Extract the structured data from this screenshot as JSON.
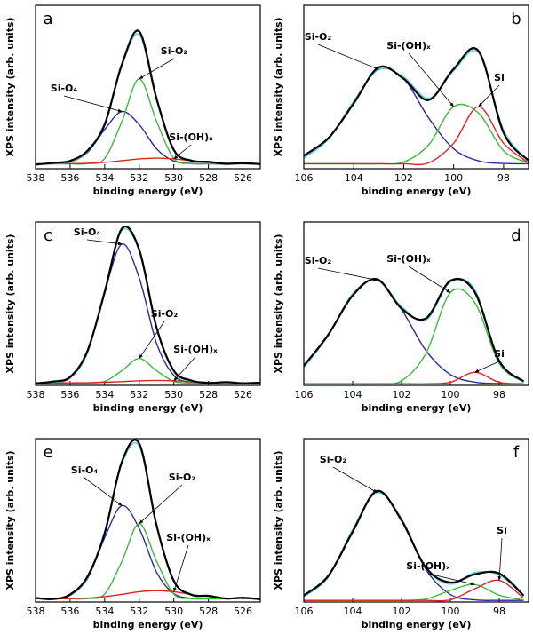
{
  "chart_data": [
    {
      "type": "line",
      "label": "a",
      "x_label": "binding energy (eV)",
      "y_label": "XPS intensity (arb. units)",
      "x": [
        538,
        537,
        536,
        535,
        534,
        533,
        532,
        531,
        530,
        529,
        528,
        527,
        526,
        525
      ],
      "xlim": [
        538,
        525
      ],
      "xticks": [
        538,
        536,
        534,
        532,
        530,
        528,
        526
      ],
      "ylim": [
        0,
        100
      ],
      "series": [
        {
          "color": "#000000",
          "values": [
            2.5,
            3.5,
            4.8,
            11,
            27,
            64,
            84,
            43,
            11.5,
            5,
            4.2,
            3,
            3.4,
            2.8
          ]
        },
        {
          "name": "Si-O₄",
          "color": "#2b2b9a",
          "values": [
            3,
            3.1,
            4.1,
            9.9,
            24,
            35,
            27,
            12.2,
            4.7,
            3.2,
            3,
            3,
            3,
            3
          ]
        },
        {
          "name": "Si-O₂",
          "color": "#3cb83c",
          "values": [
            3,
            3,
            3,
            3.1,
            6.3,
            29,
            55,
            29,
            6.3,
            3.1,
            3,
            3,
            3,
            3
          ]
        },
        {
          "name": "Si-(OH)ₓ",
          "color": "#dd2222",
          "values": [
            3,
            3,
            3.1,
            3.3,
            3.9,
            4.9,
            6,
            6.5,
            6,
            4.9,
            3.9,
            3.3,
            3.1,
            3
          ]
        },
        {
          "color": "#5bd0e0",
          "values": [
            3,
            3.1,
            4.2,
            10.3,
            28.2,
            62.9,
            82,
            41.7,
            11,
            5.2,
            3.9,
            3.3,
            3.1,
            3
          ]
        }
      ]
    },
    {
      "type": "line",
      "label": "b",
      "x_label": "binding energy (eV)",
      "y_label": "XPS intensity (arb. units)",
      "x": [
        106,
        105,
        104,
        103,
        102,
        101,
        100,
        99,
        98,
        97
      ],
      "xlim": [
        106,
        97
      ],
      "xticks": [
        106,
        104,
        102,
        100,
        98
      ],
      "ylim": [
        0,
        100
      ],
      "series": [
        {
          "color": "#000000",
          "values": [
            8,
            19,
            40,
            62,
            55,
            42,
            61,
            72,
            22,
            5
          ]
        },
        {
          "name": "Si-O₂",
          "color": "#2b2b9a",
          "values": [
            6.7,
            18.3,
            41.3,
            60.7,
            55,
            31,
            12.2,
            4.8,
            3.2,
            3
          ]
        },
        {
          "name": "Si-(OH)ₓ",
          "color": "#3cb83c",
          "values": [
            3,
            3,
            3,
            3,
            4.1,
            14.6,
            38,
            34,
            11,
            3.6
          ]
        },
        {
          "name": "Si",
          "color": "#dd2222",
          "values": [
            3,
            3,
            3,
            3,
            3,
            3.6,
            15.6,
            38,
            15.6,
            3.6
          ]
        },
        {
          "color": "#5bd0e0",
          "values": [
            6.7,
            18.3,
            41.3,
            60.7,
            56.1,
            43.2,
            59.8,
            70.8,
            23.8,
            4.2
          ]
        }
      ]
    },
    {
      "type": "line",
      "label": "c",
      "x_label": "binding energy (eV)",
      "y_label": "XPS intensity (arb. units)",
      "x": [
        538,
        537,
        536,
        535,
        534,
        533,
        532,
        531,
        530,
        529,
        528,
        527,
        526,
        525
      ],
      "xlim": [
        538,
        525
      ],
      "xticks": [
        538,
        536,
        534,
        532,
        530,
        528,
        526
      ],
      "ylim": [
        0,
        100
      ],
      "series": [
        {
          "color": "#000000",
          "values": [
            1.2,
            2.3,
            5.1,
            21,
            57,
            96,
            83,
            35.5,
            9,
            3,
            1.5,
            2,
            1.3,
            1.7
          ]
        },
        {
          "name": "Si-O₄",
          "color": "#2b2b9a",
          "values": [
            1.5,
            1.8,
            4.5,
            19.9,
            57.3,
            86.5,
            65.7,
            25.8,
            6.1,
            1.9,
            1.5,
            1.5,
            1.5,
            1.5
          ]
        },
        {
          "name": "Si-O₂",
          "color": "#3cb83c",
          "values": [
            1.5,
            1.5,
            1.5,
            1.5,
            2.4,
            9,
            16.5,
            9,
            2.4,
            1.5,
            1.5,
            1.5,
            1.5,
            1.5
          ]
        },
        {
          "name": "Si-(OH)ₓ",
          "color": "#dd2222",
          "values": [
            1.5,
            1.5,
            1.5,
            1.6,
            1.9,
            2.3,
            2.8,
            3,
            2.8,
            2.3,
            1.9,
            1.6,
            1.5,
            1.5
          ]
        },
        {
          "color": "#5bd0e0",
          "values": [
            1.5,
            1.8,
            4.5,
            20,
            58.6,
            94.8,
            82,
            34.8,
            8.3,
            2.7,
            1.9,
            1.6,
            1.5,
            1.5
          ]
        }
      ]
    },
    {
      "type": "line",
      "label": "d",
      "x_label": "binding energy (eV)",
      "y_label": "XPS intensity (arb. units)",
      "x": [
        106,
        105,
        104,
        103,
        102,
        101,
        100,
        99,
        98,
        97
      ],
      "xlim": [
        106,
        96.8
      ],
      "xticks": [
        106,
        104,
        102,
        100,
        98
      ],
      "ylim": [
        0,
        100
      ],
      "series": [
        {
          "color": "#000000",
          "values": [
            12,
            31,
            55,
            65,
            47,
            41,
            64,
            57,
            15,
            2.5
          ]
        },
        {
          "name": "Si-O₂",
          "color": "#2b2b9a",
          "values": [
            10.9,
            30.6,
            56,
            64.4,
            46.4,
            21.3,
            6.6,
            2,
            1.1,
            1
          ]
        },
        {
          "name": "Si-(OH)ₓ",
          "color": "#3cb83c",
          "values": [
            1,
            1,
            1,
            1,
            2.8,
            19.6,
            56.8,
            50.6,
            13.4,
            1.9
          ]
        },
        {
          "name": "Si",
          "color": "#dd2222",
          "values": [
            1,
            1,
            1,
            1,
            1,
            1,
            1.9,
            8,
            1.9,
            1
          ]
        },
        {
          "color": "#5bd0e0",
          "values": [
            10.9,
            30.6,
            56,
            64.4,
            48.2,
            39.9,
            63.2,
            58.6,
            14.4,
            1.9
          ]
        }
      ]
    },
    {
      "type": "line",
      "label": "e",
      "x_label": "binding energy (eV)",
      "y_label": "XPS intensity (arb. units)",
      "x": [
        538,
        537,
        536,
        535,
        534,
        533,
        532,
        531,
        530,
        529,
        528,
        527,
        526,
        525
      ],
      "xlim": [
        538,
        525
      ],
      "xticks": [
        538,
        536,
        534,
        532,
        530,
        528,
        526
      ],
      "ylim": [
        0,
        100
      ],
      "series": [
        {
          "color": "#000000",
          "values": [
            2.5,
            1.8,
            4.6,
            15.5,
            42,
            86,
            97,
            47,
            13,
            4.5,
            3.8,
            2.1,
            2.6,
            1.7
          ]
        },
        {
          "name": "Si-O₄",
          "color": "#2b2b9a",
          "values": [
            2,
            2.2,
            4,
            14.3,
            39.4,
            59,
            45,
            18.3,
            5.1,
            2.3,
            2,
            2,
            2,
            2
          ]
        },
        {
          "name": "Si-O₂",
          "color": "#3cb83c",
          "values": [
            2,
            2,
            2,
            2.1,
            4.9,
            25,
            48,
            25,
            4.9,
            2.1,
            2,
            2,
            2,
            2
          ]
        },
        {
          "name": "Si-(OH)ₓ",
          "color": "#dd2222",
          "values": [
            2,
            2,
            2.1,
            2.4,
            3.3,
            4.7,
            6.3,
            7,
            6.3,
            4.7,
            3.3,
            2.4,
            2.1,
            2
          ]
        },
        {
          "color": "#5bd0e0",
          "values": [
            2,
            2.2,
            4.1,
            14.8,
            43.6,
            84.7,
            95.3,
            46.3,
            12.3,
            5.1,
            3.3,
            2.4,
            2.1,
            2
          ]
        }
      ]
    },
    {
      "type": "line",
      "label": "f",
      "x_label": "binding energy (eV)",
      "y_label": "XPS intensity (arb. units)",
      "x": [
        106,
        105,
        104,
        103,
        102,
        101,
        100,
        99,
        98,
        97
      ],
      "xlim": [
        106,
        96.8
      ],
      "xticks": [
        106,
        104,
        102,
        100,
        98
      ],
      "ylim": [
        0,
        100
      ],
      "series": [
        {
          "color": "#000000",
          "values": [
            4,
            16,
            43,
            68,
            50,
            21,
            12,
            17,
            17.5,
            4
          ]
        },
        {
          "name": "Si-O₂",
          "color": "#2b2b9a",
          "values": [
            3.3,
            15.3,
            44.4,
            67,
            50.8,
            19.9,
            4.6,
            1.3,
            1,
            1
          ]
        },
        {
          "name": "Si-(OH)ₓ",
          "color": "#3cb83c",
          "values": [
            1,
            1,
            1,
            1,
            1,
            1.8,
            7.1,
            10.7,
            4.2,
            1.2
          ]
        },
        {
          "name": "Si",
          "color": "#dd2222",
          "values": [
            1,
            1,
            1,
            1,
            1,
            1,
            1.3,
            8.1,
            13.3,
            2.3
          ]
        },
        {
          "color": "#5bd0e0",
          "values": [
            3.3,
            15.3,
            44.4,
            67,
            50.8,
            20.7,
            11,
            18.1,
            16.5,
            3.5
          ]
        }
      ]
    }
  ]
}
